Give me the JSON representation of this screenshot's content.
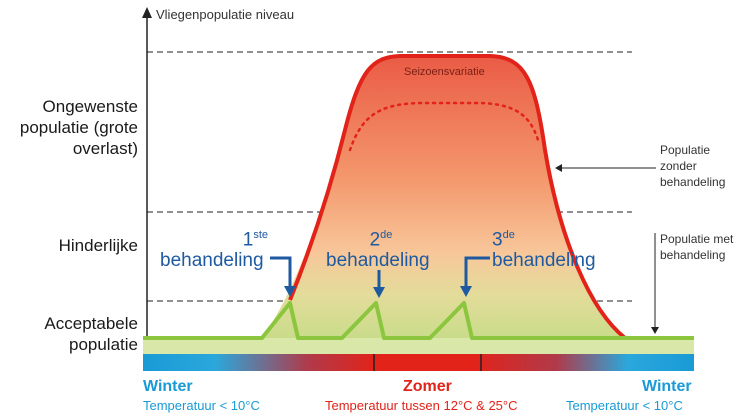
{
  "axis": {
    "y_label": "Vliegenpopulatie niveau"
  },
  "zones": {
    "unwanted": "Ongewenste populatie (grote overlast)",
    "annoying": "Hinderlijke",
    "acceptable": "Acceptabele populatie"
  },
  "curve_label": "Seizoensvariatie",
  "annotations": {
    "without_treatment": "Populatie zonder behandeling",
    "with_treatment": "Populatie met behandeling"
  },
  "treatments": [
    {
      "num": "1",
      "sup": "ste",
      "label": "behandeling"
    },
    {
      "num": "2",
      "sup": "de",
      "label": "behandeling"
    },
    {
      "num": "3",
      "sup": "de",
      "label": "behandeling"
    }
  ],
  "seasons": {
    "winter_left": {
      "name": "Winter",
      "temp": "Temperatuur < 10°C"
    },
    "summer": {
      "name": "Zomer",
      "temp": "Temperatuur tussen 12°C & 25°C"
    },
    "winter_right": {
      "name": "Winter",
      "temp": "Temperatuur < 10°C"
    }
  },
  "colors": {
    "winter": "#1a9ad6",
    "summer": "#e2231a",
    "treatment_blue": "#1f5aa0",
    "curve_red": "#e2231a",
    "treated_green": "#8cc63f"
  }
}
